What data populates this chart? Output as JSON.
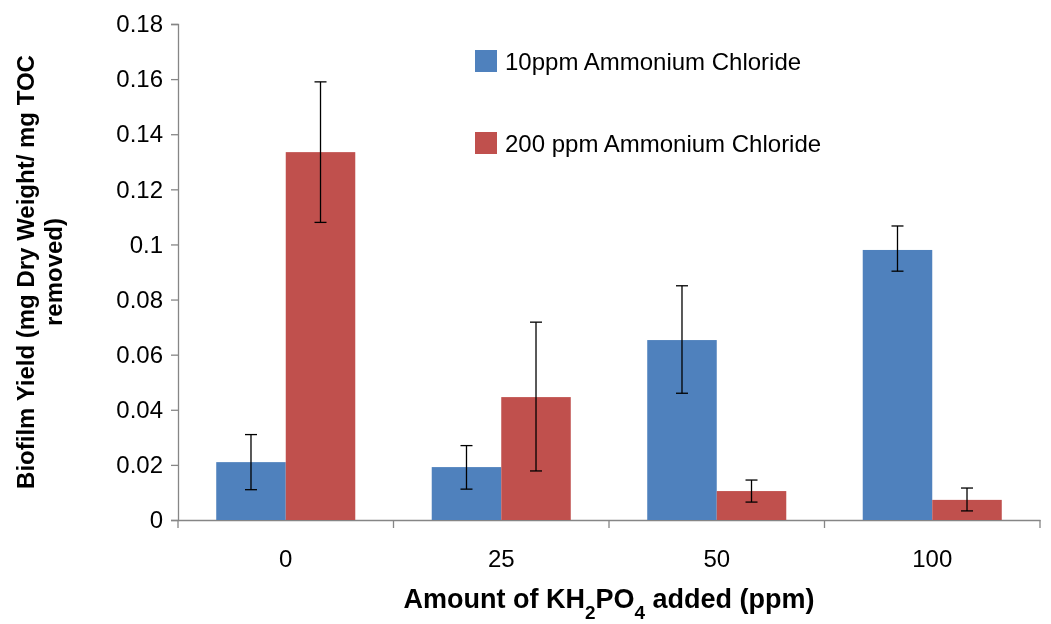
{
  "chart_data": {
    "type": "bar",
    "xlabel": "Amount of KH$_{2}$PO$_{4}$ added (ppm)",
    "ylabel": "Biofilm Yield (mg Dry Weight/ mg TOC removed)",
    "categories": [
      "0",
      "25",
      "50",
      "100"
    ],
    "series": [
      {
        "name": "10ppm Ammonium Chloride",
        "color": "#4f81bd",
        "values": [
          0.021,
          0.0192,
          0.0653,
          0.098
        ],
        "errors": [
          [
            0.011,
            0.031
          ],
          [
            0.0112,
            0.027
          ],
          [
            0.046,
            0.085
          ],
          [
            0.0903,
            0.1067
          ]
        ]
      },
      {
        "name": "200 ppm Ammonium Chloride",
        "color": "#c0504d",
        "values": [
          0.1335,
          0.0446,
          0.0105,
          0.0073
        ],
        "errors": [
          [
            0.108,
            0.159
          ],
          [
            0.0178,
            0.0718
          ],
          [
            0.0065,
            0.0145
          ],
          [
            0.0033,
            0.0116
          ]
        ]
      }
    ],
    "ylim": [
      0,
      0.18
    ],
    "yticks": [
      0,
      0.02,
      0.04,
      0.06,
      0.08,
      0.1,
      0.12,
      0.14,
      0.16,
      0.18
    ],
    "grid": false,
    "legend": "top right"
  }
}
